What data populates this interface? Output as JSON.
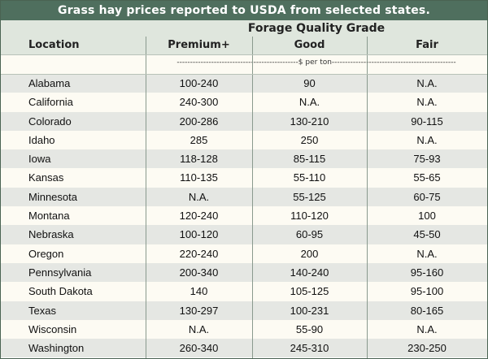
{
  "title": "Grass hay prices reported to USDA from selected states.",
  "header": {
    "group_label": "Forage Quality Grade",
    "location_label": "Location",
    "columns": [
      "Premium+",
      "Good",
      "Fair"
    ]
  },
  "units_label": "----------------------------------------------$ per ton-----------------------------------------------",
  "rows": [
    {
      "location": "Alabama",
      "premium": "100-240",
      "good": "90",
      "fair": "N.A."
    },
    {
      "location": "California",
      "premium": "240-300",
      "good": "N.A.",
      "fair": "N.A."
    },
    {
      "location": "Colorado",
      "premium": "200-286",
      "good": "130-210",
      "fair": "90-115"
    },
    {
      "location": "Idaho",
      "premium": "285",
      "good": "250",
      "fair": "N.A."
    },
    {
      "location": "Iowa",
      "premium": "118-128",
      "good": "85-115",
      "fair": "75-93"
    },
    {
      "location": "Kansas",
      "premium": "110-135",
      "good": "55-110",
      "fair": "55-65"
    },
    {
      "location": "Minnesota",
      "premium": "N.A.",
      "good": "55-125",
      "fair": "60-75"
    },
    {
      "location": "Montana",
      "premium": "120-240",
      "good": "110-120",
      "fair": "100"
    },
    {
      "location": "Nebraska",
      "premium": "100-120",
      "good": "60-95",
      "fair": "45-50"
    },
    {
      "location": "Oregon",
      "premium": "220-240",
      "good": "200",
      "fair": "N.A."
    },
    {
      "location": "Pennsylvania",
      "premium": "200-340",
      "good": "140-240",
      "fair": "95-160"
    },
    {
      "location": "South Dakota",
      "premium": "140",
      "good": "105-125",
      "fair": "95-100"
    },
    {
      "location": "Texas",
      "premium": "130-297",
      "good": "100-231",
      "fair": "80-165"
    },
    {
      "location": "Wisconsin",
      "premium": "N.A.",
      "good": "55-90",
      "fair": "N.A."
    },
    {
      "location": "Washington",
      "premium": "260-340",
      "good": "245-310",
      "fair": "230-250"
    }
  ]
}
